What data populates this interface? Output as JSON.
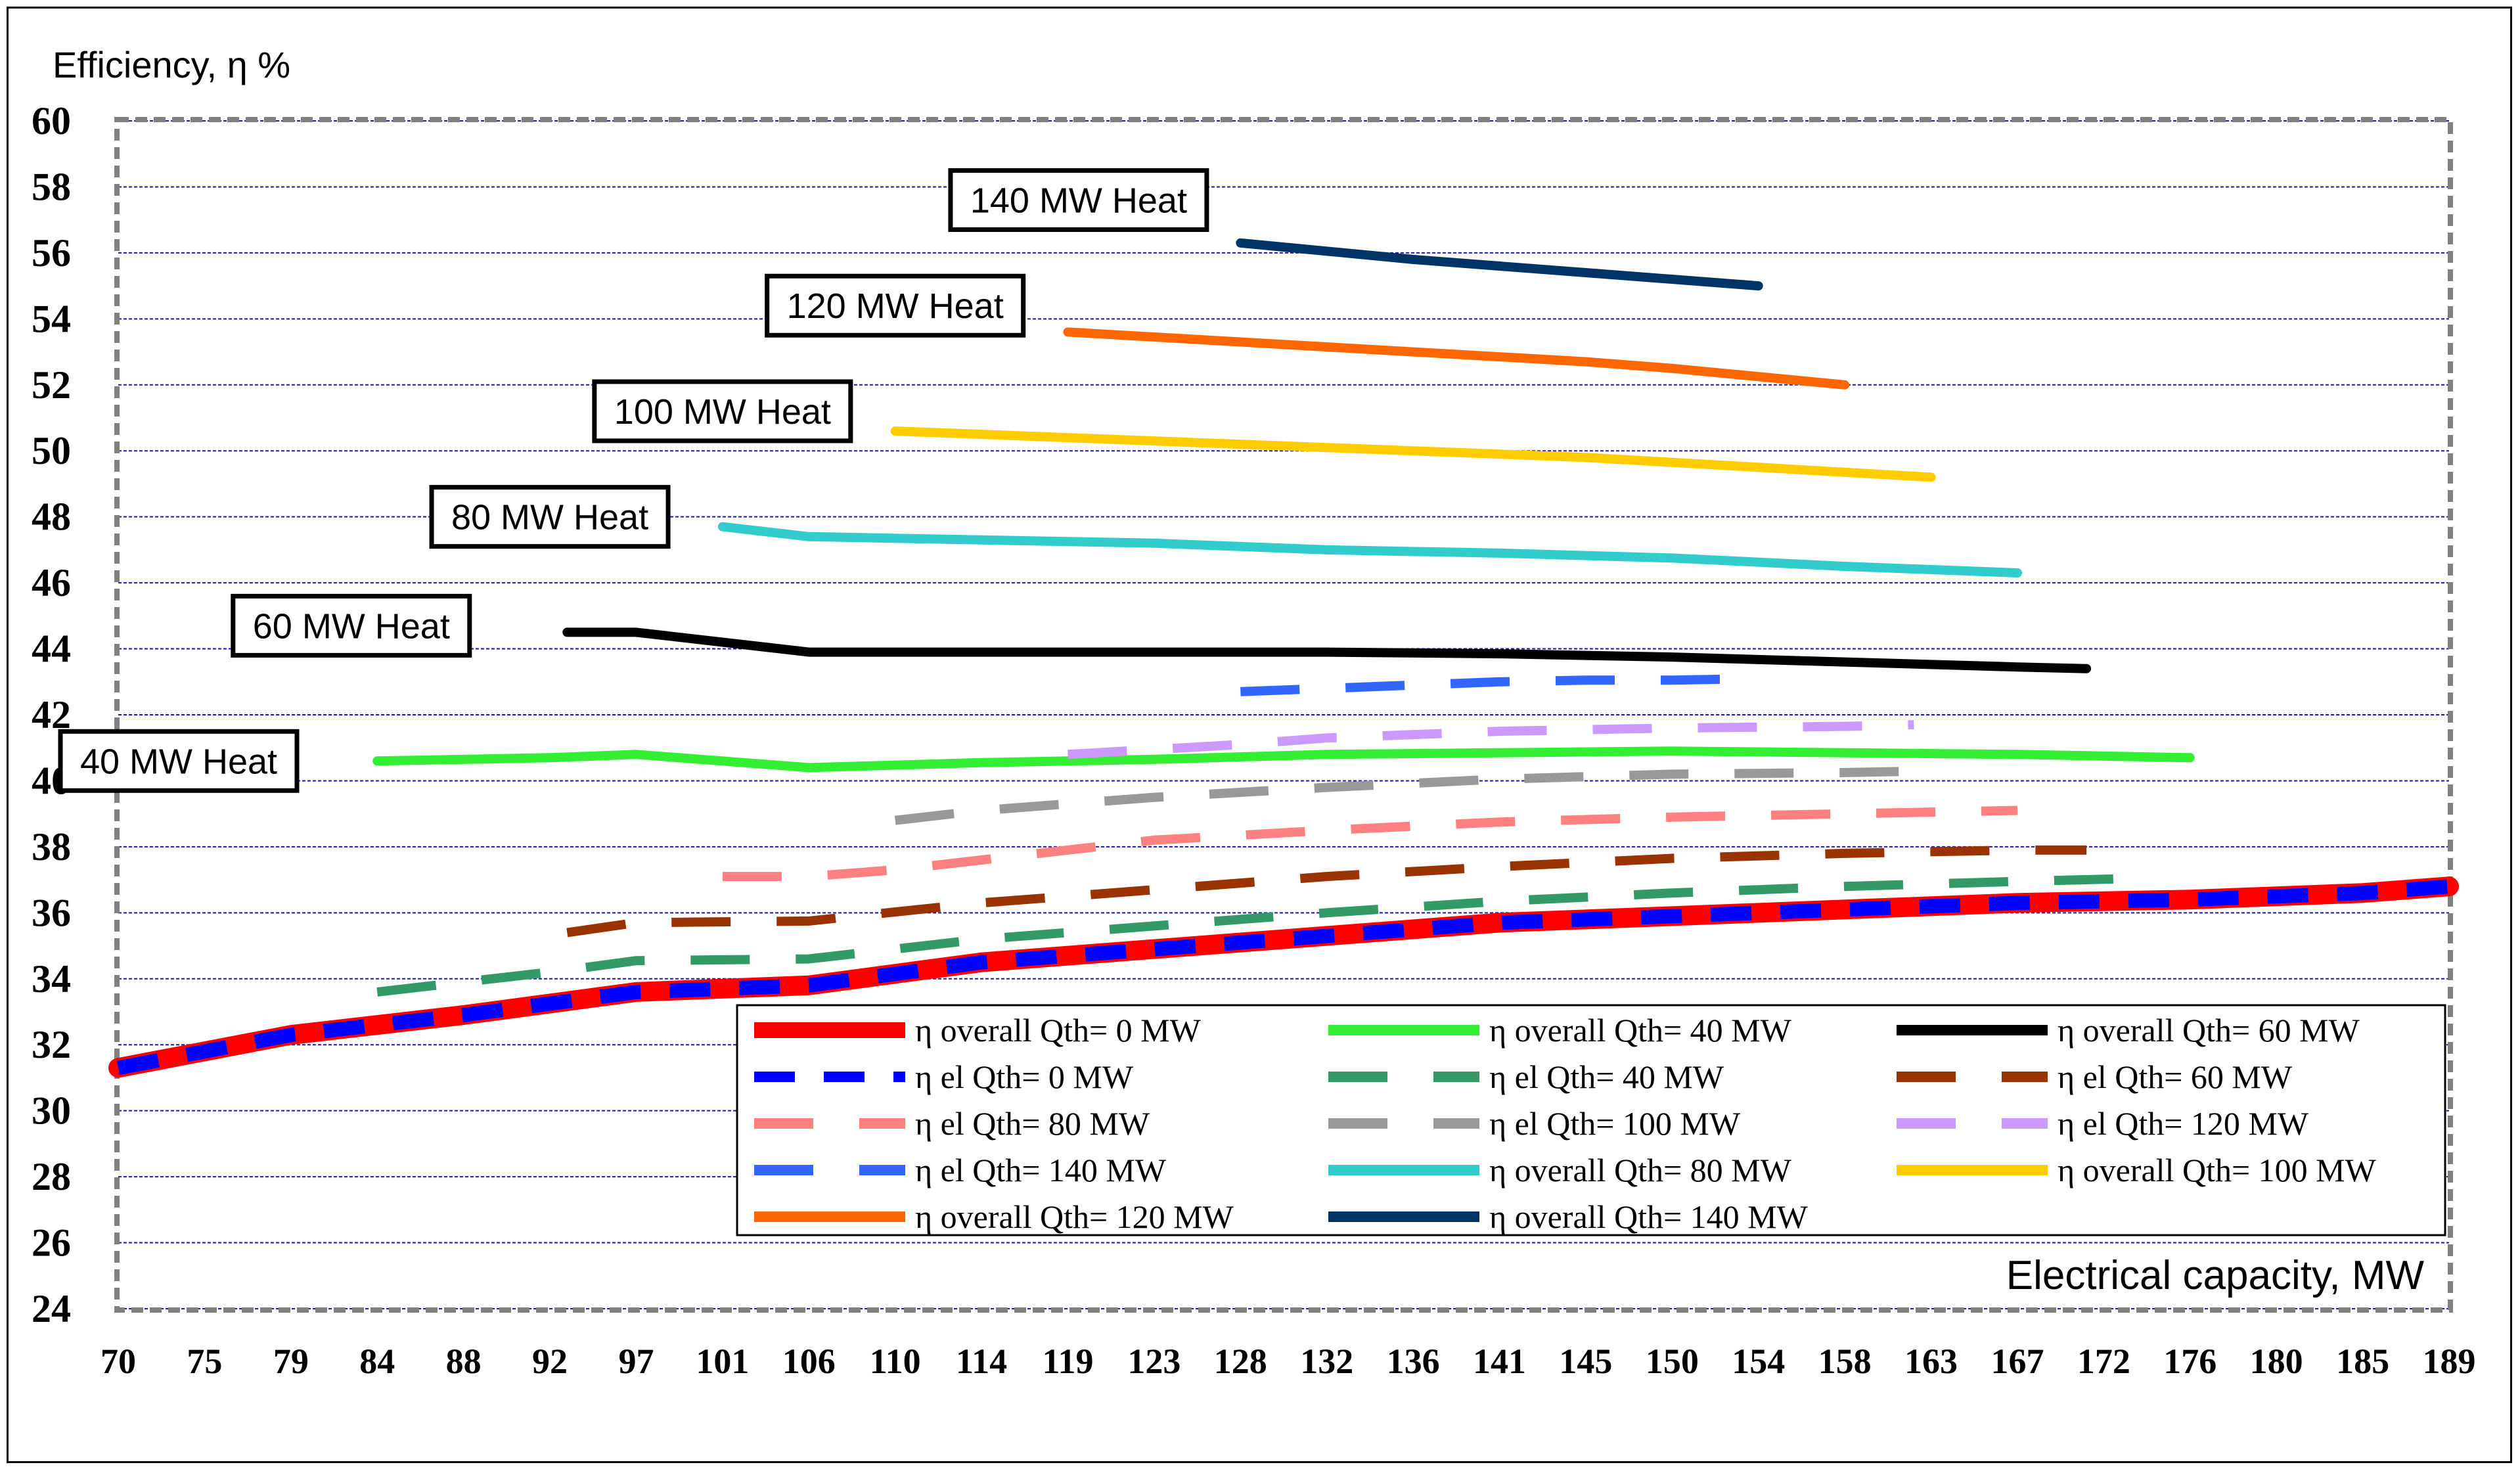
{
  "chart_data": {
    "type": "line",
    "ylabel": "Efficiency, η %",
    "xlabel": "Electrical capacity, MW",
    "ylim": [
      24,
      60
    ],
    "yticks": [
      24,
      26,
      28,
      30,
      32,
      34,
      36,
      38,
      40,
      42,
      44,
      46,
      48,
      50,
      52,
      54,
      56,
      58,
      60
    ],
    "xticks": [
      "70",
      "75",
      "79",
      "84",
      "88",
      "92",
      "97",
      "101",
      "106",
      "110",
      "114",
      "119",
      "123",
      "128",
      "132",
      "136",
      "141",
      "145",
      "150",
      "154",
      "158",
      "163",
      "167",
      "172",
      "176",
      "180",
      "185",
      "189"
    ],
    "grid": "horizontal",
    "legend_position": "bottom-right",
    "annotations": [
      {
        "text": "40 MW Heat",
        "x": 73.5,
        "y": 40.6
      },
      {
        "text": "60 MW Heat",
        "x": 82.5,
        "y": 44.7
      },
      {
        "text": "80 MW Heat",
        "x": 92.0,
        "y": 48.0
      },
      {
        "text": "100 MW Heat",
        "x": 101.0,
        "y": 51.2
      },
      {
        "text": "120 MW Heat",
        "x": 110.0,
        "y": 54.4
      },
      {
        "text": "140 MW Heat",
        "x": 119.5,
        "y": 57.6
      }
    ],
    "series": [
      {
        "name": "η overall Qth= 0 MW",
        "color": "#ff0000",
        "style": "solid",
        "width": 30,
        "x": [
          70,
          79,
          88,
          97,
          106,
          114,
          123,
          132,
          141,
          150,
          158,
          167,
          176,
          185,
          189
        ],
        "y": [
          31.3,
          32.3,
          32.9,
          33.6,
          33.8,
          34.5,
          34.9,
          35.3,
          35.7,
          35.9,
          36.1,
          36.3,
          36.4,
          36.6,
          36.8
        ]
      },
      {
        "name": "η el Qth= 0 MW",
        "color": "#0000ff",
        "style": "dash",
        "width": 22,
        "x": [
          70,
          79,
          88,
          97,
          106,
          114,
          123,
          132,
          141,
          150,
          158,
          167,
          176,
          185,
          189
        ],
        "y": [
          31.3,
          32.3,
          32.9,
          33.6,
          33.8,
          34.5,
          34.9,
          35.3,
          35.7,
          35.9,
          36.1,
          36.3,
          36.4,
          36.6,
          36.8
        ]
      },
      {
        "name": "η overall Qth= 40 MW",
        "color": "#33ee33",
        "style": "solid",
        "width": 14,
        "x": [
          84,
          92,
          97,
          106,
          114,
          123,
          132,
          141,
          150,
          158,
          167,
          176
        ],
        "y": [
          40.6,
          40.7,
          40.8,
          40.4,
          40.55,
          40.65,
          40.8,
          40.85,
          40.9,
          40.85,
          40.8,
          40.7
        ]
      },
      {
        "name": "η overall Qth= 60 MW",
        "color": "#000000",
        "style": "solid",
        "width": 14,
        "x": [
          93,
          97,
          106,
          114,
          123,
          132,
          141,
          150,
          158,
          167,
          171
        ],
        "y": [
          44.5,
          44.5,
          43.9,
          43.9,
          43.9,
          43.9,
          43.85,
          43.75,
          43.6,
          43.45,
          43.4
        ]
      },
      {
        "name": "η el Qth= 40 MW",
        "color": "#339966",
        "style": "longdash",
        "width": 14,
        "x": [
          84,
          92,
          97,
          106,
          114,
          123,
          132,
          141,
          150,
          158,
          167,
          174
        ],
        "y": [
          33.6,
          34.2,
          34.55,
          34.6,
          35.2,
          35.6,
          36.0,
          36.35,
          36.6,
          36.8,
          36.95,
          37.05
        ]
      },
      {
        "name": "η el Qth= 60 MW",
        "color": "#993300",
        "style": "longdash",
        "width": 14,
        "x": [
          93,
          97,
          106,
          114,
          123,
          132,
          141,
          150,
          158,
          167,
          171
        ],
        "y": [
          35.4,
          35.7,
          35.75,
          36.3,
          36.7,
          37.1,
          37.4,
          37.65,
          37.8,
          37.9,
          37.9
        ]
      },
      {
        "name": "η el Qth= 80 MW",
        "color": "#ff8080",
        "style": "longdash",
        "width": 14,
        "x": [
          101,
          106,
          110,
          114,
          123,
          132,
          141,
          150,
          158,
          167
        ],
        "y": [
          37.1,
          37.1,
          37.3,
          37.6,
          38.2,
          38.5,
          38.75,
          38.9,
          39.0,
          39.1
        ]
      },
      {
        "name": "η el Qth= 100 MW",
        "color": "#999999",
        "style": "longdash",
        "width": 14,
        "x": [
          110,
          114,
          119,
          123,
          128,
          132,
          141,
          150,
          158,
          163
        ],
        "y": [
          38.8,
          39.1,
          39.3,
          39.5,
          39.65,
          39.8,
          40.05,
          40.2,
          40.25,
          40.3
        ]
      },
      {
        "name": "η el Qth= 120 MW",
        "color": "#cc99ff",
        "style": "longdash",
        "width": 14,
        "x": [
          119,
          123,
          128,
          132,
          141,
          150,
          158,
          162
        ],
        "y": [
          40.8,
          40.95,
          41.1,
          41.3,
          41.5,
          41.6,
          41.65,
          41.7
        ]
      },
      {
        "name": "η el Qth= 140 MW",
        "color": "#3366ff",
        "style": "longdash",
        "width": 14,
        "x": [
          128,
          132,
          136,
          141,
          145,
          150,
          154
        ],
        "y": [
          42.7,
          42.8,
          42.9,
          43.0,
          43.05,
          43.05,
          43.1
        ]
      },
      {
        "name": "η overall Qth= 80 MW",
        "color": "#33cccc",
        "style": "solid",
        "width": 14,
        "x": [
          101,
          106,
          114,
          123,
          132,
          141,
          150,
          158,
          167
        ],
        "y": [
          47.7,
          47.4,
          47.3,
          47.2,
          47.0,
          46.9,
          46.75,
          46.5,
          46.3
        ]
      },
      {
        "name": "η overall  Qth= 100 MW",
        "color": "#ffcc00",
        "style": "solid",
        "width": 14,
        "x": [
          110,
          119,
          128,
          136,
          145,
          154,
          163
        ],
        "y": [
          50.6,
          50.4,
          50.2,
          50.0,
          49.8,
          49.5,
          49.2
        ]
      },
      {
        "name": "η overall Qth= 120 MW",
        "color": "#ff6600",
        "style": "solid",
        "width": 14,
        "x": [
          119,
          128,
          136,
          145,
          150,
          158
        ],
        "y": [
          53.6,
          53.3,
          53.0,
          52.7,
          52.5,
          52.0
        ]
      },
      {
        "name": "η overall Qth= 140 MW",
        "color": "#003366",
        "style": "solid",
        "width": 14,
        "x": [
          128,
          136,
          145,
          154
        ],
        "y": [
          56.3,
          55.8,
          55.4,
          55.0
        ]
      }
    ],
    "legend_layout": [
      [
        "η overall Qth= 0 MW",
        "η overall Qth= 40 MW",
        "η overall Qth= 60 MW"
      ],
      [
        "η el Qth= 0 MW",
        "η el Qth= 40 MW",
        "η el Qth= 60 MW"
      ],
      [
        "η el Qth= 80 MW",
        "η el Qth= 100 MW",
        "η el Qth= 120 MW"
      ],
      [
        "η el Qth= 140 MW",
        "η overall Qth= 80 MW",
        "η overall  Qth= 100 MW"
      ],
      [
        "η overall Qth= 120 MW",
        "η overall Qth= 140 MW"
      ]
    ]
  }
}
